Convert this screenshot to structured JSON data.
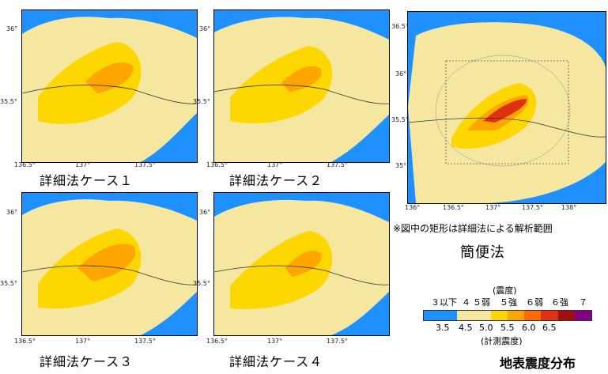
{
  "colors": {
    "sea": "#1e90ff",
    "low": "#f5e6a0",
    "mid": "#ffd700",
    "high": "#ffa500",
    "higher": "#ff6a00",
    "strong": "#e03010",
    "severe": "#a01010",
    "max": "#800080"
  },
  "panels": [
    {
      "caption": "詳細法ケース１",
      "y_ticks": [
        "36°",
        "35.5°"
      ],
      "x_ticks": [
        "136.5°",
        "137°",
        "137.5°"
      ]
    },
    {
      "caption": "詳細法ケース２",
      "y_ticks": [
        "36°",
        "35.5°"
      ],
      "x_ticks": [
        "136.5°",
        "137°",
        "137.5°"
      ]
    },
    {
      "caption": "詳細法ケース３",
      "y_ticks": [
        "36°",
        "35.5°"
      ],
      "x_ticks": [
        "136.5°",
        "137°",
        "137.5°"
      ]
    },
    {
      "caption": "詳細法ケース４",
      "y_ticks": [
        "36°",
        "35.5°"
      ],
      "x_ticks": [
        "136.5°",
        "137°",
        "137.5°"
      ]
    }
  ],
  "simple_panel": {
    "caption": "簡便法",
    "y_ticks": [
      "36.5°",
      "36°",
      "35.5°",
      "35°"
    ],
    "x_ticks": [
      "136°",
      "136.5°",
      "137°",
      "137.5°",
      "138°"
    ]
  },
  "note": "※図中の矩形は詳細法による解析範囲",
  "legend": {
    "title": "(震度)",
    "classes": [
      "３以下",
      "４",
      "５弱",
      "５強",
      "６弱",
      "６強",
      "７"
    ],
    "scale_values": [
      "3.5",
      "4.5",
      "5.0",
      "5.5",
      "6.0",
      "6.5"
    ],
    "scale_title": "(計測震度)"
  },
  "figure_title": "地表震度分布"
}
